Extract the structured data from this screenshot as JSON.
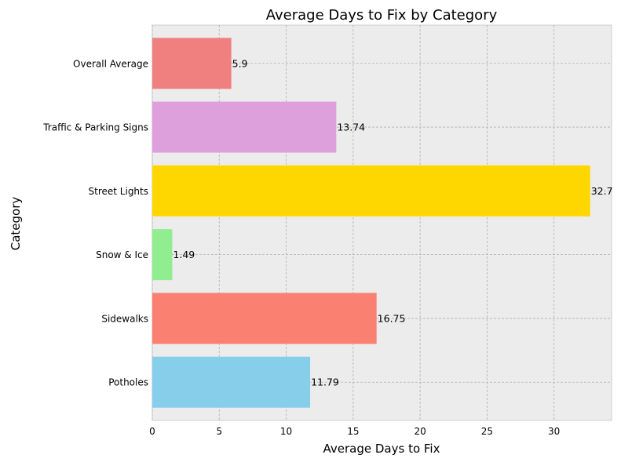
{
  "chart_data": {
    "type": "bar",
    "orientation": "horizontal",
    "title": "Average Days to Fix by Category",
    "xlabel": "Average Days to Fix",
    "ylabel": "Category",
    "categories": [
      "Potholes",
      "Sidewalks",
      "Snow & Ice",
      "Street Lights",
      "Traffic & Parking Signs",
      "Overall Average"
    ],
    "values": [
      11.79,
      16.75,
      1.49,
      32.7,
      13.74,
      5.9
    ],
    "value_labels": [
      "11.79",
      "16.75",
      "1.49",
      "32.7",
      "13.74",
      "5.9"
    ],
    "bar_colors": [
      "#87ceeb",
      "#fa8072",
      "#90ee90",
      "#ffd700",
      "#dda0dd",
      "#f08080"
    ],
    "xlim": [
      0,
      34.3
    ],
    "xticks": [
      0,
      5,
      10,
      15,
      20,
      25,
      30
    ],
    "grid": true,
    "legend": "none",
    "background_color": "#ececec"
  }
}
